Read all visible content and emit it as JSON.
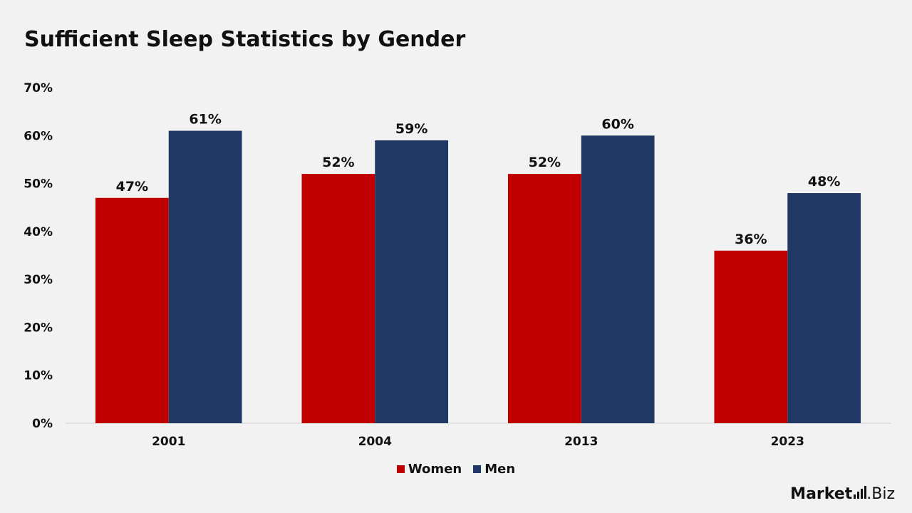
{
  "chart_data": {
    "type": "bar",
    "title": "Sufficient Sleep Statistics by Gender",
    "categories": [
      "2001",
      "2004",
      "2013",
      "2023"
    ],
    "series": [
      {
        "name": "Women",
        "color": "#c00000",
        "values": [
          47,
          52,
          52,
          36
        ],
        "labels": [
          "47%",
          "52%",
          "52%",
          "36%"
        ]
      },
      {
        "name": "Men",
        "color": "#203864",
        "values": [
          61,
          59,
          60,
          48
        ],
        "labels": [
          "61%",
          "59%",
          "60%",
          "48%"
        ]
      }
    ],
    "ylim": [
      0,
      70
    ],
    "yticks": [
      0,
      10,
      20,
      30,
      40,
      50,
      60,
      70
    ],
    "ytick_labels": [
      "0%",
      "10%",
      "20%",
      "30%",
      "40%",
      "50%",
      "60%",
      "70%"
    ],
    "grid": false,
    "legend": "bottom"
  },
  "branding": {
    "text": "Market",
    "suffix": ".Biz"
  }
}
